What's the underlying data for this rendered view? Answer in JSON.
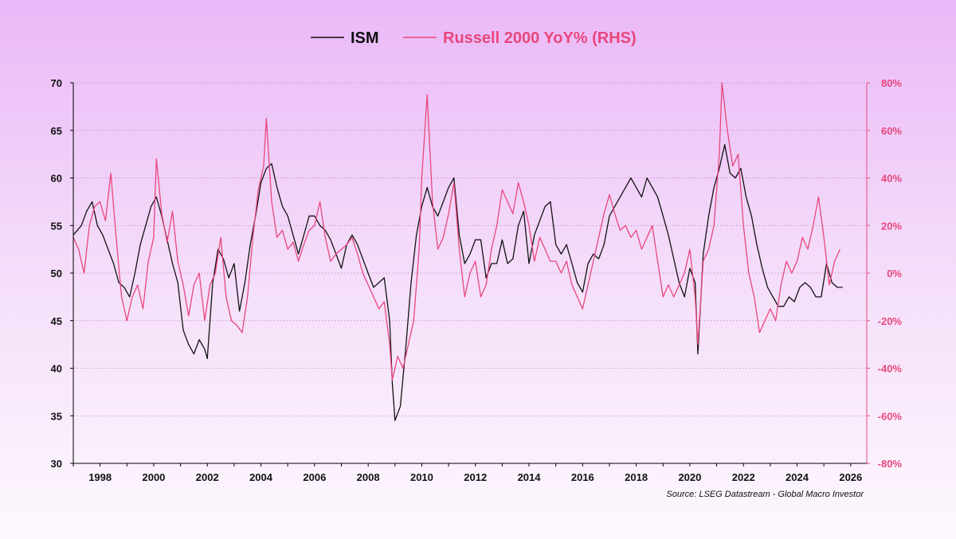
{
  "chart_data": {
    "type": "line",
    "title": "",
    "source": "Source: LSEG Datastream - Global Macro Investor",
    "xlim": [
      1997.0,
      2026.6
    ],
    "x_ticks": [
      1998,
      2000,
      2002,
      2004,
      2006,
      2008,
      2010,
      2012,
      2014,
      2016,
      2018,
      2020,
      2022,
      2024,
      2026
    ],
    "y_left": {
      "label": "ISM",
      "lim": [
        30,
        70
      ],
      "ticks": [
        30,
        35,
        40,
        45,
        50,
        55,
        60,
        65,
        70
      ],
      "tick_labels": [
        "30",
        "35",
        "40",
        "45",
        "50",
        "55",
        "60",
        "65",
        "70"
      ]
    },
    "y_right": {
      "label": "Russell 2000 YoY% (RHS)",
      "lim": [
        -80,
        80
      ],
      "ticks": [
        -80,
        -60,
        -40,
        -20,
        0,
        20,
        40,
        60,
        80
      ],
      "tick_labels": [
        "-80%",
        "-60%",
        "-40%",
        "-20%",
        "0%",
        "20%",
        "40%",
        "60%",
        "80%"
      ]
    },
    "grid": true,
    "legend": {
      "placement": "top-center",
      "entries": [
        "ISM",
        "Russell 2000 YoY% (RHS)"
      ]
    },
    "colors": {
      "ism": "#111111",
      "russell": "#e8477c",
      "axis": "#000000",
      "right_axis": "#e8477c",
      "grid": "#c77ac7"
    },
    "series": [
      {
        "name": "ISM",
        "axis": "left",
        "points": [
          [
            1997.0,
            54
          ],
          [
            1997.3,
            55
          ],
          [
            1997.5,
            56.5
          ],
          [
            1997.7,
            57.5
          ],
          [
            1997.9,
            55
          ],
          [
            1998.1,
            54
          ],
          [
            1998.3,
            52.5
          ],
          [
            1998.5,
            51
          ],
          [
            1998.7,
            49
          ],
          [
            1998.9,
            48.5
          ],
          [
            1999.1,
            47.5
          ],
          [
            1999.3,
            50
          ],
          [
            1999.5,
            53
          ],
          [
            1999.7,
            55
          ],
          [
            1999.9,
            57
          ],
          [
            2000.1,
            58
          ],
          [
            2000.3,
            56
          ],
          [
            2000.5,
            53.5
          ],
          [
            2000.7,
            51
          ],
          [
            2000.9,
            49
          ],
          [
            2001.1,
            44
          ],
          [
            2001.3,
            42.5
          ],
          [
            2001.5,
            41.5
          ],
          [
            2001.7,
            43
          ],
          [
            2001.9,
            42
          ],
          [
            2002.0,
            41
          ],
          [
            2002.2,
            49
          ],
          [
            2002.4,
            52.5
          ],
          [
            2002.6,
            51.5
          ],
          [
            2002.8,
            49.5
          ],
          [
            2003.0,
            51
          ],
          [
            2003.2,
            46
          ],
          [
            2003.4,
            49
          ],
          [
            2003.6,
            53
          ],
          [
            2003.8,
            56
          ],
          [
            2004.0,
            59.5
          ],
          [
            2004.2,
            61
          ],
          [
            2004.4,
            61.5
          ],
          [
            2004.6,
            59
          ],
          [
            2004.8,
            57
          ],
          [
            2005.0,
            56
          ],
          [
            2005.2,
            54
          ],
          [
            2005.4,
            52
          ],
          [
            2005.6,
            54
          ],
          [
            2005.8,
            56
          ],
          [
            2006.0,
            56
          ],
          [
            2006.2,
            55
          ],
          [
            2006.4,
            54.5
          ],
          [
            2006.6,
            53.5
          ],
          [
            2006.8,
            52
          ],
          [
            2007.0,
            50.5
          ],
          [
            2007.2,
            53
          ],
          [
            2007.4,
            54
          ],
          [
            2007.6,
            53
          ],
          [
            2007.8,
            51.5
          ],
          [
            2008.0,
            50
          ],
          [
            2008.2,
            48.5
          ],
          [
            2008.4,
            49
          ],
          [
            2008.6,
            49.5
          ],
          [
            2008.8,
            45
          ],
          [
            2008.9,
            38.5
          ],
          [
            2009.0,
            34.5
          ],
          [
            2009.2,
            36
          ],
          [
            2009.4,
            42
          ],
          [
            2009.6,
            49
          ],
          [
            2009.8,
            54
          ],
          [
            2010.0,
            57
          ],
          [
            2010.2,
            59
          ],
          [
            2010.4,
            57
          ],
          [
            2010.6,
            56
          ],
          [
            2010.8,
            57.5
          ],
          [
            2011.0,
            59
          ],
          [
            2011.2,
            60
          ],
          [
            2011.4,
            54
          ],
          [
            2011.6,
            51
          ],
          [
            2011.8,
            52
          ],
          [
            2012.0,
            53.5
          ],
          [
            2012.2,
            53.5
          ],
          [
            2012.4,
            49.5
          ],
          [
            2012.6,
            51
          ],
          [
            2012.8,
            51
          ],
          [
            2013.0,
            53.5
          ],
          [
            2013.2,
            51
          ],
          [
            2013.4,
            51.5
          ],
          [
            2013.6,
            55
          ],
          [
            2013.8,
            56.5
          ],
          [
            2014.0,
            51
          ],
          [
            2014.2,
            54
          ],
          [
            2014.4,
            55.5
          ],
          [
            2014.6,
            57
          ],
          [
            2014.8,
            57.5
          ],
          [
            2015.0,
            53
          ],
          [
            2015.2,
            52
          ],
          [
            2015.4,
            53
          ],
          [
            2015.6,
            51
          ],
          [
            2015.8,
            49
          ],
          [
            2016.0,
            48
          ],
          [
            2016.2,
            51
          ],
          [
            2016.4,
            52
          ],
          [
            2016.6,
            51.5
          ],
          [
            2016.8,
            53
          ],
          [
            2017.0,
            56
          ],
          [
            2017.2,
            57
          ],
          [
            2017.4,
            58
          ],
          [
            2017.6,
            59
          ],
          [
            2017.8,
            60
          ],
          [
            2018.0,
            59
          ],
          [
            2018.2,
            58
          ],
          [
            2018.4,
            60
          ],
          [
            2018.6,
            59
          ],
          [
            2018.8,
            58
          ],
          [
            2019.0,
            56
          ],
          [
            2019.2,
            54
          ],
          [
            2019.4,
            51.5
          ],
          [
            2019.6,
            49
          ],
          [
            2019.8,
            47.5
          ],
          [
            2020.0,
            50.5
          ],
          [
            2020.2,
            49
          ],
          [
            2020.3,
            41.5
          ],
          [
            2020.5,
            52
          ],
          [
            2020.7,
            56
          ],
          [
            2020.9,
            59
          ],
          [
            2021.1,
            61
          ],
          [
            2021.3,
            63.5
          ],
          [
            2021.5,
            60.5
          ],
          [
            2021.7,
            60
          ],
          [
            2021.9,
            61
          ],
          [
            2022.1,
            58
          ],
          [
            2022.3,
            56
          ],
          [
            2022.5,
            53
          ],
          [
            2022.7,
            50.5
          ],
          [
            2022.9,
            48.5
          ],
          [
            2023.1,
            47.5
          ],
          [
            2023.3,
            46.5
          ],
          [
            2023.5,
            46.5
          ],
          [
            2023.7,
            47.5
          ],
          [
            2023.9,
            47
          ],
          [
            2024.1,
            48.5
          ],
          [
            2024.3,
            49
          ],
          [
            2024.5,
            48.5
          ],
          [
            2024.7,
            47.5
          ],
          [
            2024.9,
            47.5
          ],
          [
            2025.1,
            51
          ],
          [
            2025.3,
            49
          ],
          [
            2025.5,
            48.5
          ],
          [
            2025.7,
            48.5
          ]
        ]
      },
      {
        "name": "Russell 2000 YoY% (RHS)",
        "axis": "right",
        "points": [
          [
            1997.0,
            15
          ],
          [
            1997.2,
            10
          ],
          [
            1997.4,
            0
          ],
          [
            1997.6,
            20
          ],
          [
            1997.8,
            28
          ],
          [
            1998.0,
            30
          ],
          [
            1998.2,
            22
          ],
          [
            1998.4,
            42
          ],
          [
            1998.6,
            15
          ],
          [
            1998.8,
            -10
          ],
          [
            1999.0,
            -20
          ],
          [
            1999.2,
            -10
          ],
          [
            1999.4,
            -5
          ],
          [
            1999.6,
            -15
          ],
          [
            1999.8,
            5
          ],
          [
            2000.0,
            15
          ],
          [
            2000.1,
            48
          ],
          [
            2000.3,
            25
          ],
          [
            2000.5,
            13
          ],
          [
            2000.7,
            26
          ],
          [
            2000.9,
            5
          ],
          [
            2001.1,
            -5
          ],
          [
            2001.3,
            -18
          ],
          [
            2001.5,
            -5
          ],
          [
            2001.7,
            0
          ],
          [
            2001.9,
            -20
          ],
          [
            2002.1,
            -5
          ],
          [
            2002.3,
            0
          ],
          [
            2002.5,
            15
          ],
          [
            2002.7,
            -10
          ],
          [
            2002.9,
            -20
          ],
          [
            2003.1,
            -22
          ],
          [
            2003.3,
            -25
          ],
          [
            2003.5,
            -10
          ],
          [
            2003.7,
            15
          ],
          [
            2003.9,
            35
          ],
          [
            2004.1,
            45
          ],
          [
            2004.2,
            65
          ],
          [
            2004.4,
            30
          ],
          [
            2004.6,
            15
          ],
          [
            2004.8,
            18
          ],
          [
            2005.0,
            10
          ],
          [
            2005.2,
            13
          ],
          [
            2005.4,
            5
          ],
          [
            2005.6,
            12
          ],
          [
            2005.8,
            18
          ],
          [
            2006.0,
            20
          ],
          [
            2006.2,
            30
          ],
          [
            2006.4,
            15
          ],
          [
            2006.6,
            5
          ],
          [
            2006.8,
            8
          ],
          [
            2007.0,
            10
          ],
          [
            2007.2,
            12
          ],
          [
            2007.4,
            15
          ],
          [
            2007.6,
            8
          ],
          [
            2007.8,
            0
          ],
          [
            2008.0,
            -5
          ],
          [
            2008.2,
            -10
          ],
          [
            2008.4,
            -15
          ],
          [
            2008.6,
            -12
          ],
          [
            2008.8,
            -30
          ],
          [
            2008.9,
            -45
          ],
          [
            2009.1,
            -35
          ],
          [
            2009.3,
            -40
          ],
          [
            2009.5,
            -30
          ],
          [
            2009.7,
            -20
          ],
          [
            2009.9,
            10
          ],
          [
            2010.0,
            40
          ],
          [
            2010.2,
            75
          ],
          [
            2010.4,
            30
          ],
          [
            2010.6,
            10
          ],
          [
            2010.8,
            15
          ],
          [
            2011.0,
            25
          ],
          [
            2011.2,
            38
          ],
          [
            2011.4,
            10
          ],
          [
            2011.6,
            -10
          ],
          [
            2011.8,
            0
          ],
          [
            2012.0,
            5
          ],
          [
            2012.2,
            -10
          ],
          [
            2012.4,
            -5
          ],
          [
            2012.6,
            10
          ],
          [
            2012.8,
            20
          ],
          [
            2013.0,
            35
          ],
          [
            2013.2,
            30
          ],
          [
            2013.4,
            25
          ],
          [
            2013.6,
            38
          ],
          [
            2013.8,
            30
          ],
          [
            2014.0,
            20
          ],
          [
            2014.2,
            5
          ],
          [
            2014.4,
            15
          ],
          [
            2014.6,
            10
          ],
          [
            2014.8,
            5
          ],
          [
            2015.0,
            5
          ],
          [
            2015.2,
            0
          ],
          [
            2015.4,
            5
          ],
          [
            2015.6,
            -5
          ],
          [
            2015.8,
            -10
          ],
          [
            2016.0,
            -15
          ],
          [
            2016.2,
            -5
          ],
          [
            2016.4,
            5
          ],
          [
            2016.6,
            15
          ],
          [
            2016.8,
            25
          ],
          [
            2017.0,
            33
          ],
          [
            2017.2,
            25
          ],
          [
            2017.4,
            18
          ],
          [
            2017.6,
            20
          ],
          [
            2017.8,
            15
          ],
          [
            2018.0,
            18
          ],
          [
            2018.2,
            10
          ],
          [
            2018.4,
            15
          ],
          [
            2018.6,
            20
          ],
          [
            2018.8,
            5
          ],
          [
            2019.0,
            -10
          ],
          [
            2019.2,
            -5
          ],
          [
            2019.4,
            -10
          ],
          [
            2019.6,
            -5
          ],
          [
            2019.8,
            0
          ],
          [
            2020.0,
            10
          ],
          [
            2020.2,
            -10
          ],
          [
            2020.3,
            -30
          ],
          [
            2020.5,
            5
          ],
          [
            2020.7,
            10
          ],
          [
            2020.9,
            20
          ],
          [
            2021.1,
            50
          ],
          [
            2021.2,
            80
          ],
          [
            2021.4,
            60
          ],
          [
            2021.6,
            45
          ],
          [
            2021.8,
            50
          ],
          [
            2022.0,
            20
          ],
          [
            2022.2,
            0
          ],
          [
            2022.4,
            -10
          ],
          [
            2022.6,
            -25
          ],
          [
            2022.8,
            -20
          ],
          [
            2023.0,
            -15
          ],
          [
            2023.2,
            -20
          ],
          [
            2023.4,
            -5
          ],
          [
            2023.6,
            5
          ],
          [
            2023.8,
            0
          ],
          [
            2024.0,
            5
          ],
          [
            2024.2,
            15
          ],
          [
            2024.4,
            10
          ],
          [
            2024.6,
            20
          ],
          [
            2024.8,
            32
          ],
          [
            2025.0,
            15
          ],
          [
            2025.2,
            -5
          ],
          [
            2025.4,
            5
          ],
          [
            2025.6,
            10
          ]
        ]
      }
    ]
  }
}
